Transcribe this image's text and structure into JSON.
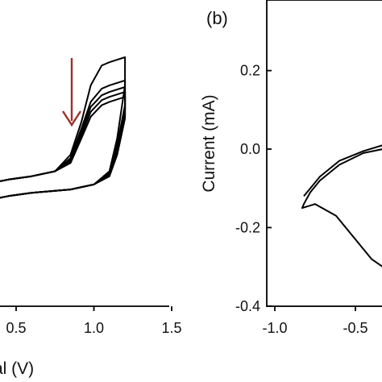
{
  "chart_data": [
    {
      "type": "line",
      "panel_label": "",
      "xlabel": "al (V)",
      "ylabel": "",
      "xlim": [
        0.29,
        1.5
      ],
      "x_ticks": [
        "0.5",
        "1.0",
        "1.5"
      ],
      "x_tick_values": [
        0.5,
        1.0,
        1.5
      ],
      "annotation": "arrow-down",
      "annotation_color": "#a0312a",
      "trace_color": "#000000",
      "series": [
        {
          "x": [
            0.29,
            0.45,
            0.6,
            0.75,
            0.85,
            0.92,
            0.98,
            1.05,
            1.1,
            1.2,
            1.2,
            1.15,
            1.1,
            1.0,
            0.85,
            0.6,
            0.45,
            0.29
          ],
          "y": [
            0.02,
            0.05,
            0.07,
            0.1,
            0.2,
            0.4,
            0.62,
            0.74,
            0.76,
            0.79,
            0.62,
            0.3,
            0.1,
            0.02,
            -0.01,
            -0.03,
            -0.05,
            -0.08
          ]
        },
        {
          "x": [
            0.29,
            0.45,
            0.6,
            0.75,
            0.85,
            0.92,
            0.98,
            1.05,
            1.1,
            1.2,
            1.2,
            1.15,
            1.1,
            1.0,
            0.85,
            0.6,
            0.45,
            0.29
          ],
          "y": [
            0.02,
            0.05,
            0.07,
            0.1,
            0.18,
            0.36,
            0.52,
            0.6,
            0.62,
            0.65,
            0.5,
            0.26,
            0.09,
            0.02,
            -0.01,
            -0.03,
            -0.05,
            -0.08
          ]
        },
        {
          "x": [
            0.29,
            0.45,
            0.6,
            0.75,
            0.85,
            0.92,
            0.98,
            1.05,
            1.1,
            1.2,
            1.2,
            1.15,
            1.1,
            1.0,
            0.85,
            0.6,
            0.45,
            0.29
          ],
          "y": [
            0.02,
            0.05,
            0.07,
            0.1,
            0.17,
            0.34,
            0.49,
            0.56,
            0.58,
            0.61,
            0.47,
            0.24,
            0.08,
            0.02,
            -0.01,
            -0.03,
            -0.05,
            -0.08
          ]
        },
        {
          "x": [
            0.29,
            0.45,
            0.6,
            0.75,
            0.85,
            0.92,
            0.98,
            1.05,
            1.1,
            1.2,
            1.2,
            1.15,
            1.1,
            1.0,
            0.85,
            0.6,
            0.45,
            0.29
          ],
          "y": [
            0.02,
            0.05,
            0.07,
            0.1,
            0.16,
            0.32,
            0.46,
            0.53,
            0.55,
            0.58,
            0.44,
            0.22,
            0.08,
            0.02,
            -0.01,
            -0.03,
            -0.05,
            -0.08
          ]
        },
        {
          "x": [
            0.29,
            0.45,
            0.6,
            0.75,
            0.85,
            0.92,
            0.98,
            1.05,
            1.1,
            1.2,
            1.2,
            1.15,
            1.1,
            1.0,
            0.85,
            0.6,
            0.45,
            0.29
          ],
          "y": [
            0.02,
            0.05,
            0.07,
            0.1,
            0.15,
            0.3,
            0.43,
            0.5,
            0.52,
            0.55,
            0.42,
            0.2,
            0.07,
            0.02,
            -0.01,
            -0.03,
            -0.05,
            -0.08
          ]
        }
      ]
    },
    {
      "type": "line",
      "panel_label": "(b)",
      "xlabel": "",
      "ylabel": "Current (mA)",
      "xlim": [
        -1.0,
        -0.33
      ],
      "ylim": [
        -0.4,
        0.35
      ],
      "x_ticks": [
        "-1.0",
        "-0.5"
      ],
      "x_tick_values": [
        -1.0,
        -0.5
      ],
      "y_ticks": [
        "0.2",
        "0.0",
        "-0.2",
        "-0.4"
      ],
      "y_tick_values": [
        0.2,
        0.0,
        -0.2,
        -0.4
      ],
      "trace_color": "#000000",
      "series": [
        {
          "x": [
            -0.33,
            -0.45,
            -0.6,
            -0.72,
            -0.78,
            -0.82,
            -0.83,
            -0.75,
            -0.62,
            -0.5,
            -0.4,
            -0.33
          ],
          "y": [
            0.0,
            -0.01,
            -0.04,
            -0.08,
            -0.11,
            -0.14,
            -0.15,
            -0.14,
            -0.17,
            -0.23,
            -0.28,
            -0.3
          ]
        },
        {
          "x": [
            -0.33,
            -0.45,
            -0.6,
            -0.72,
            -0.78,
            -0.82
          ],
          "y": [
            0.01,
            -0.005,
            -0.03,
            -0.07,
            -0.1,
            -0.12
          ]
        }
      ]
    }
  ]
}
